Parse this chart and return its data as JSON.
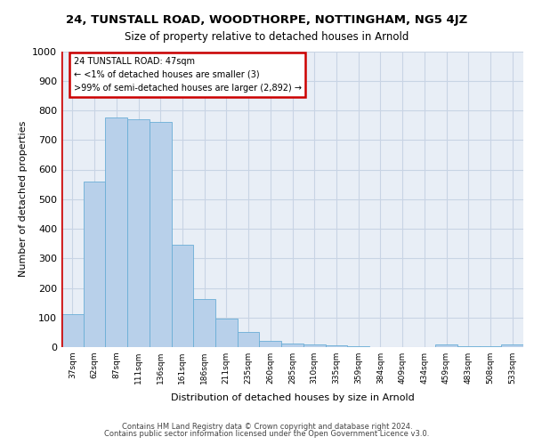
{
  "title1": "24, TUNSTALL ROAD, WOODTHORPE, NOTTINGHAM, NG5 4JZ",
  "title2": "Size of property relative to detached houses in Arnold",
  "xlabel": "Distribution of detached houses by size in Arnold",
  "ylabel": "Number of detached properties",
  "categories": [
    "37sqm",
    "62sqm",
    "87sqm",
    "111sqm",
    "136sqm",
    "161sqm",
    "186sqm",
    "211sqm",
    "235sqm",
    "260sqm",
    "285sqm",
    "310sqm",
    "335sqm",
    "359sqm",
    "384sqm",
    "409sqm",
    "434sqm",
    "459sqm",
    "483sqm",
    "508sqm",
    "533sqm"
  ],
  "values": [
    110,
    560,
    775,
    770,
    760,
    345,
    162,
    95,
    50,
    20,
    13,
    8,
    5,
    3,
    0,
    0,
    0,
    10,
    3,
    3,
    10
  ],
  "bar_color": "#b8d0ea",
  "bar_edge_color": "#6aaed6",
  "highlight_line_color": "#cc0000",
  "annotation_line1": "24 TUNSTALL ROAD: 47sqm",
  "annotation_line2": "← <1% of detached houses are smaller (3)",
  "annotation_line3": ">99% of semi-detached houses are larger (2,892) →",
  "annotation_box_color": "#ffffff",
  "annotation_box_edge": "#cc0000",
  "grid_color": "#c8d4e4",
  "background_color": "#e8eef6",
  "ylim": [
    0,
    1000
  ],
  "yticks": [
    0,
    100,
    200,
    300,
    400,
    500,
    600,
    700,
    800,
    900,
    1000
  ],
  "footer1": "Contains HM Land Registry data © Crown copyright and database right 2024.",
  "footer2": "Contains public sector information licensed under the Open Government Licence v3.0."
}
